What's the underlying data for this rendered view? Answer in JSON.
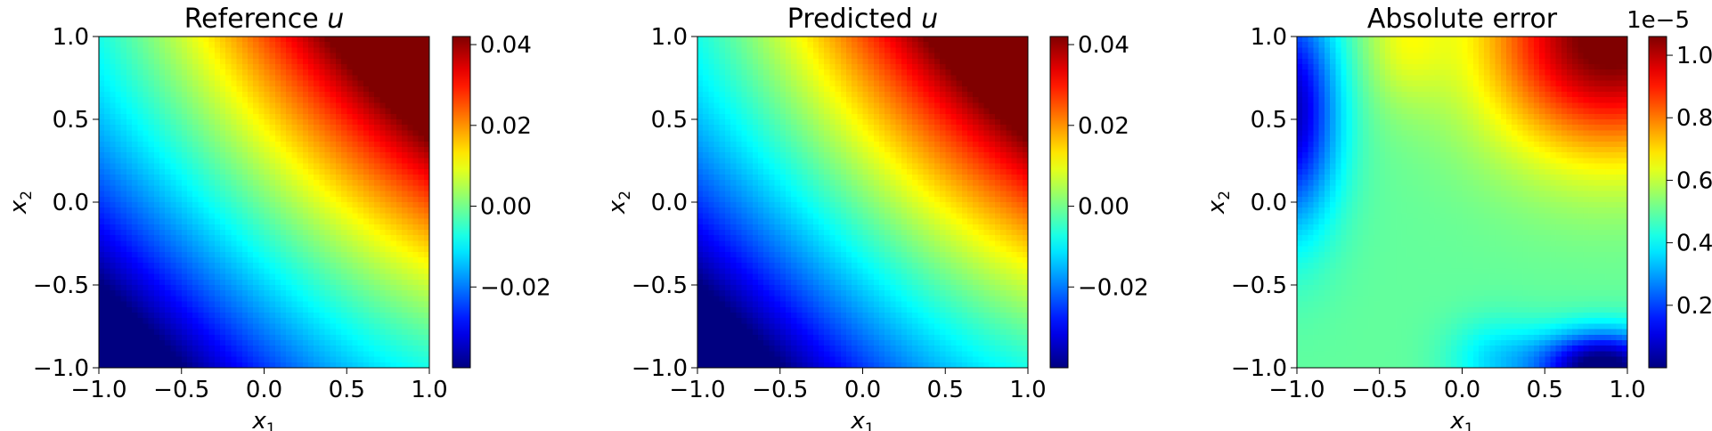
{
  "chart_data": [
    {
      "type": "heatmap",
      "title": "Reference u",
      "title_text": "Reference ",
      "title_var": "u",
      "xlabel": "x1",
      "ylabel": "x2",
      "xlim": [
        -1.0,
        1.0
      ],
      "ylim": [
        -1.0,
        1.0
      ],
      "x_ticks": [
        "−1.0",
        "−0.5",
        "0.0",
        "0.5",
        "1.0"
      ],
      "y_ticks": [
        "−1.0",
        "−0.5",
        "0.0",
        "0.5",
        "1.0"
      ],
      "colormap": "jet",
      "field": "reference",
      "vmin": -0.04,
      "vmax": 0.042,
      "colorbar_ticks": [
        {
          "value": 0.04,
          "label": "0.04"
        },
        {
          "value": 0.02,
          "label": "0.02"
        },
        {
          "value": 0.0,
          "label": "0.00"
        },
        {
          "value": -0.02,
          "label": "−0.02"
        }
      ],
      "colorbar_offset_text": "",
      "corner_values": {
        "x1=-1,x2=-1": -0.04,
        "x1=1,x2=1": 0.042,
        "x1=-1,x2=1": 0.0,
        "x1=1,x2=-1": 0.0
      }
    },
    {
      "type": "heatmap",
      "title": "Predicted u",
      "title_text": "Predicted ",
      "title_var": "u",
      "xlabel": "x1",
      "ylabel": "x2",
      "xlim": [
        -1.0,
        1.0
      ],
      "ylim": [
        -1.0,
        1.0
      ],
      "x_ticks": [
        "−1.0",
        "−0.5",
        "0.0",
        "0.5",
        "1.0"
      ],
      "y_ticks": [
        "−1.0",
        "−0.5",
        "0.0",
        "0.5",
        "1.0"
      ],
      "colormap": "jet",
      "field": "predicted",
      "vmin": -0.04,
      "vmax": 0.042,
      "colorbar_ticks": [
        {
          "value": 0.04,
          "label": "0.04"
        },
        {
          "value": 0.02,
          "label": "0.02"
        },
        {
          "value": 0.0,
          "label": "0.00"
        },
        {
          "value": -0.02,
          "label": "−0.02"
        }
      ],
      "colorbar_offset_text": "",
      "corner_values": {
        "x1=-1,x2=-1": -0.04,
        "x1=1,x2=1": 0.042,
        "x1=-1,x2=1": 0.0,
        "x1=1,x2=-1": 0.0
      }
    },
    {
      "type": "heatmap",
      "title": "Absolute error",
      "title_text": "Absolute error",
      "title_var": "",
      "xlabel": "x1",
      "ylabel": "x2",
      "xlim": [
        -1.0,
        1.0
      ],
      "ylim": [
        -1.0,
        1.0
      ],
      "x_ticks": [
        "−1.0",
        "−0.5",
        "0.0",
        "0.5",
        "1.0"
      ],
      "y_ticks": [
        "−1.0",
        "−0.5",
        "0.0",
        "0.5",
        "1.0"
      ],
      "colormap": "jet",
      "field": "error",
      "vmin": 0.0,
      "vmax": 1.06e-05,
      "colorbar_ticks": [
        {
          "value": 1e-05,
          "label": "1.0"
        },
        {
          "value": 8e-06,
          "label": "0.8"
        },
        {
          "value": 6e-06,
          "label": "0.6"
        },
        {
          "value": 4e-06,
          "label": "0.4"
        },
        {
          "value": 2e-06,
          "label": "0.2"
        }
      ],
      "colorbar_offset_text": "1e−5",
      "approx_values": {
        "top-right": 1.05e-05,
        "top-left": 1e-06,
        "bottom-right": 0.0,
        "center": 5e-06,
        "bottom-left": 5e-06
      }
    }
  ]
}
